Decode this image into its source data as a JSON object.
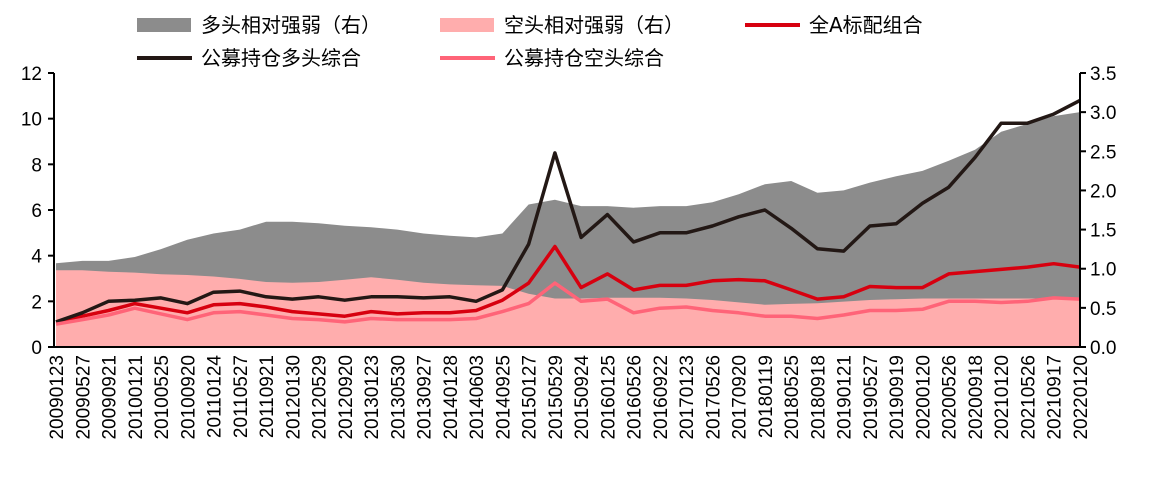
{
  "chart_data": {
    "type": "line",
    "title": "",
    "xlabel": "",
    "ylabel": "",
    "y_left": {
      "range": [
        0,
        12
      ],
      "ticks": [
        "0",
        "2",
        "4",
        "6",
        "8",
        "10",
        "12"
      ]
    },
    "y_right": {
      "range": [
        0,
        3.5
      ],
      "ticks": [
        "0.0",
        "0.5",
        "1.0",
        "1.5",
        "2.0",
        "2.5",
        "3.0",
        "3.5"
      ]
    },
    "grid": false,
    "legend_position": "top",
    "categories": [
      "20090123",
      "20090527",
      "20090921",
      "20100121",
      "20100525",
      "20100920",
      "20110124",
      "20110527",
      "20110921",
      "20120130",
      "20120529",
      "20120920",
      "20130123",
      "20130530",
      "20130927",
      "20140128",
      "20140603",
      "20140925",
      "20150127",
      "20150529",
      "20150924",
      "20160125",
      "20160526",
      "20160922",
      "20170123",
      "20170526",
      "20170920",
      "20180119",
      "20180525",
      "20180918",
      "20190121",
      "20190527",
      "20190919",
      "20200120",
      "20200526",
      "20200918",
      "20210120",
      "20210526",
      "20210917",
      "20220120"
    ],
    "series": [
      {
        "name": "多头相对强弱（右）",
        "kind": "area",
        "axis": "right",
        "color": "#8c8c8c",
        "values": [
          1.07,
          1.1,
          1.1,
          1.15,
          1.25,
          1.37,
          1.45,
          1.5,
          1.6,
          1.6,
          1.58,
          1.55,
          1.53,
          1.5,
          1.45,
          1.42,
          1.4,
          1.45,
          1.82,
          1.88,
          1.8,
          1.8,
          1.78,
          1.8,
          1.8,
          1.85,
          1.95,
          2.08,
          2.12,
          1.97,
          2.0,
          2.1,
          2.18,
          2.25,
          2.38,
          2.52,
          2.75,
          2.85,
          2.95,
          3.0
        ]
      },
      {
        "name": "空头相对强弱（右）",
        "kind": "area",
        "axis": "right",
        "color": "#ffadad",
        "values": [
          0.98,
          0.98,
          0.96,
          0.95,
          0.93,
          0.92,
          0.9,
          0.87,
          0.83,
          0.82,
          0.83,
          0.86,
          0.89,
          0.86,
          0.82,
          0.8,
          0.79,
          0.78,
          0.68,
          0.62,
          0.62,
          0.63,
          0.63,
          0.63,
          0.62,
          0.6,
          0.57,
          0.54,
          0.55,
          0.56,
          0.58,
          0.6,
          0.61,
          0.62,
          0.62,
          0.62,
          0.62,
          0.62,
          0.62,
          0.62
        ]
      },
      {
        "name": "全A标配组合",
        "kind": "line",
        "axis": "left",
        "color": "#d7000f",
        "values": [
          1.1,
          1.35,
          1.6,
          1.9,
          1.7,
          1.5,
          1.85,
          1.9,
          1.75,
          1.55,
          1.45,
          1.35,
          1.55,
          1.45,
          1.5,
          1.5,
          1.6,
          2.05,
          2.8,
          4.4,
          2.6,
          3.2,
          2.5,
          2.7,
          2.7,
          2.9,
          2.95,
          2.9,
          2.5,
          2.1,
          2.2,
          2.65,
          2.6,
          2.6,
          3.2,
          3.3,
          3.4,
          3.5,
          3.65,
          3.5
        ]
      },
      {
        "name": "公募持仓多头综合",
        "kind": "line",
        "axis": "left",
        "color": "#231815",
        "values": [
          1.1,
          1.5,
          2.0,
          2.05,
          2.15,
          1.9,
          2.4,
          2.45,
          2.2,
          2.1,
          2.2,
          2.05,
          2.2,
          2.2,
          2.15,
          2.2,
          2.0,
          2.5,
          4.5,
          8.5,
          4.8,
          5.8,
          4.6,
          5.0,
          5.0,
          5.3,
          5.7,
          6.0,
          5.2,
          4.3,
          4.2,
          5.3,
          5.4,
          6.3,
          7.0,
          8.3,
          9.8,
          9.8,
          10.2,
          10.8
        ]
      },
      {
        "name": "公募持仓空头综合",
        "kind": "line",
        "axis": "left",
        "color": "#ff6478",
        "values": [
          1.0,
          1.2,
          1.4,
          1.7,
          1.45,
          1.2,
          1.5,
          1.55,
          1.4,
          1.25,
          1.2,
          1.1,
          1.25,
          1.2,
          1.2,
          1.2,
          1.25,
          1.55,
          1.9,
          2.8,
          2.0,
          2.1,
          1.5,
          1.7,
          1.75,
          1.6,
          1.5,
          1.35,
          1.35,
          1.25,
          1.4,
          1.6,
          1.6,
          1.65,
          2.0,
          2.0,
          1.95,
          2.0,
          2.15,
          2.1
        ]
      }
    ],
    "legend_order": [
      0,
      1,
      2,
      3,
      4
    ]
  }
}
